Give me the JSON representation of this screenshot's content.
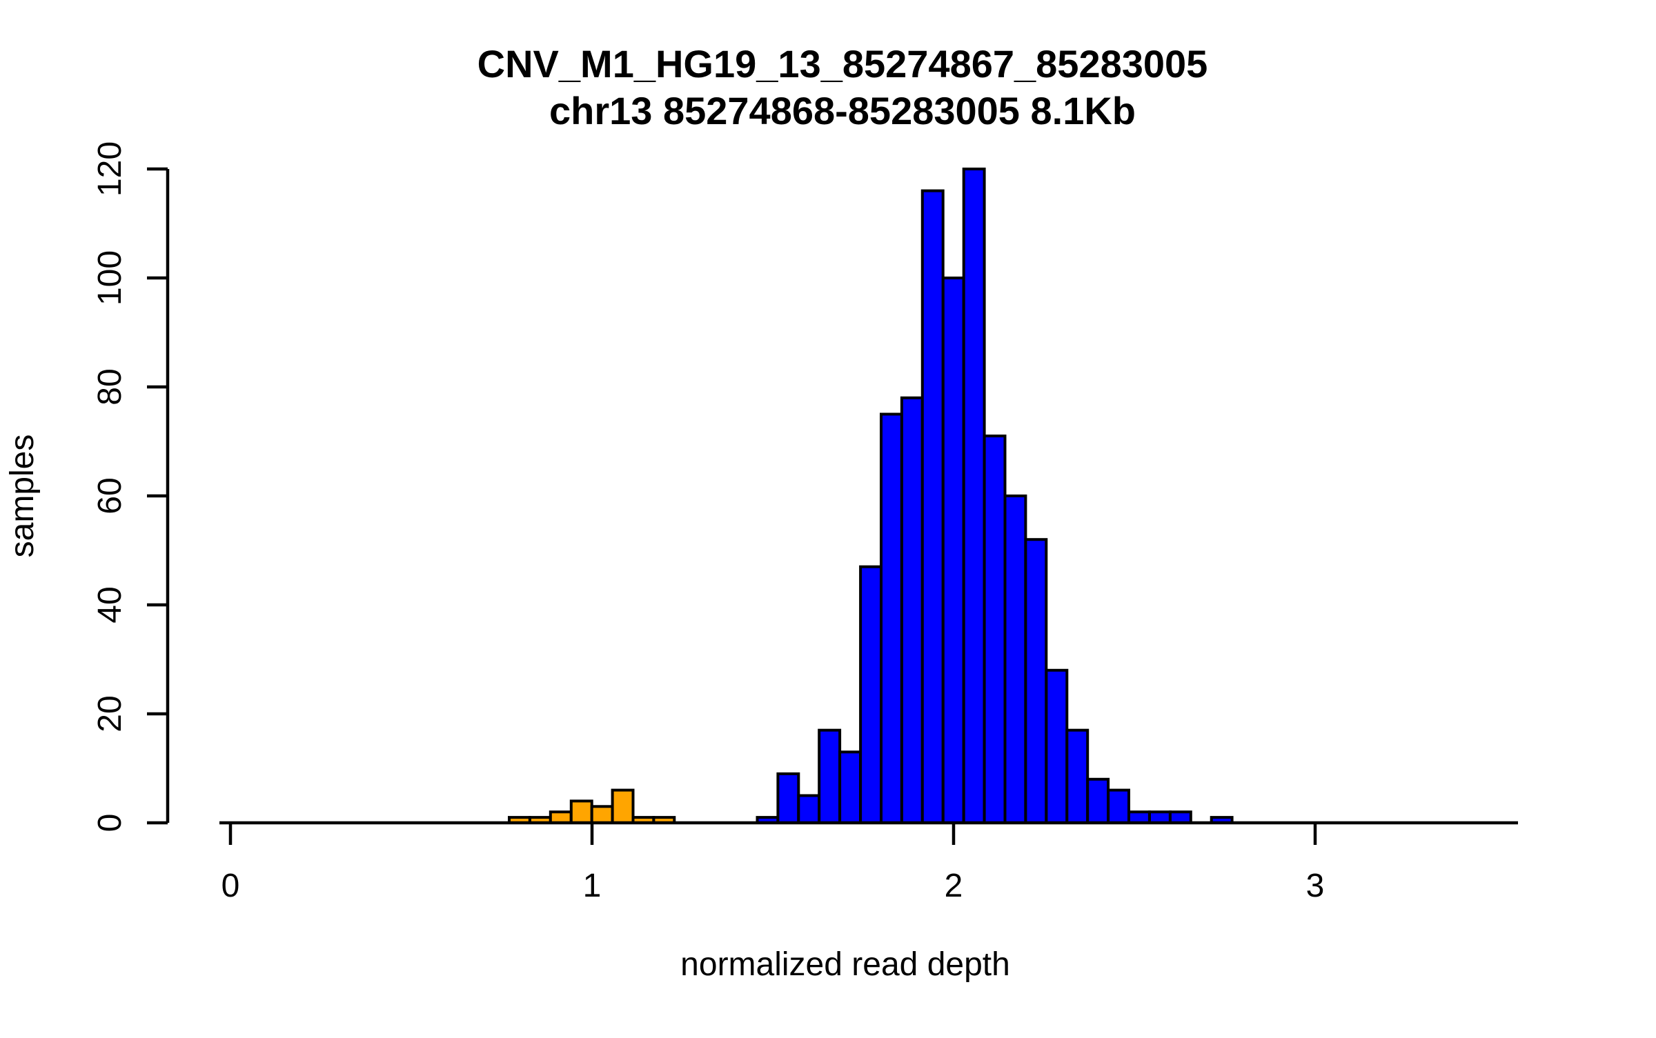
{
  "chart_data": {
    "type": "bar",
    "variant": "histogram",
    "title": "CNV_M1_HG19_13_85274867_85283005",
    "subtitle": "chr13 85274868-85283005 8.1Kb",
    "xlabel": "normalized read depth",
    "ylabel": "samples",
    "x_ticks": [
      "0",
      "1",
      "2",
      "3"
    ],
    "x_tick_values": [
      0,
      1,
      2,
      3
    ],
    "y_ticks": [
      "0",
      "20",
      "40",
      "60",
      "80",
      "100",
      "120"
    ],
    "y_tick_values": [
      0,
      20,
      40,
      60,
      80,
      100,
      120
    ],
    "xlim": [
      -0.03,
      3.56
    ],
    "ylim": [
      0,
      120
    ],
    "grid": false,
    "legend_position": "none",
    "background": "#FFFFFF",
    "text_color": "#000000",
    "bar_border_color": "#000000",
    "bin_width": 0.0571,
    "series": [
      {
        "name": "orange_bars",
        "color": "#FFA500",
        "start": 0.771,
        "values": [
          1,
          1,
          2,
          4,
          3,
          6,
          1,
          1
        ]
      },
      {
        "name": "blue_bars",
        "color": "#0000FF",
        "start": 1.457,
        "values": [
          1,
          9,
          5,
          17,
          13,
          47,
          75,
          78,
          116,
          100,
          120,
          71,
          60,
          52,
          28,
          17,
          8,
          6,
          2,
          2,
          2,
          0,
          1
        ]
      }
    ]
  }
}
